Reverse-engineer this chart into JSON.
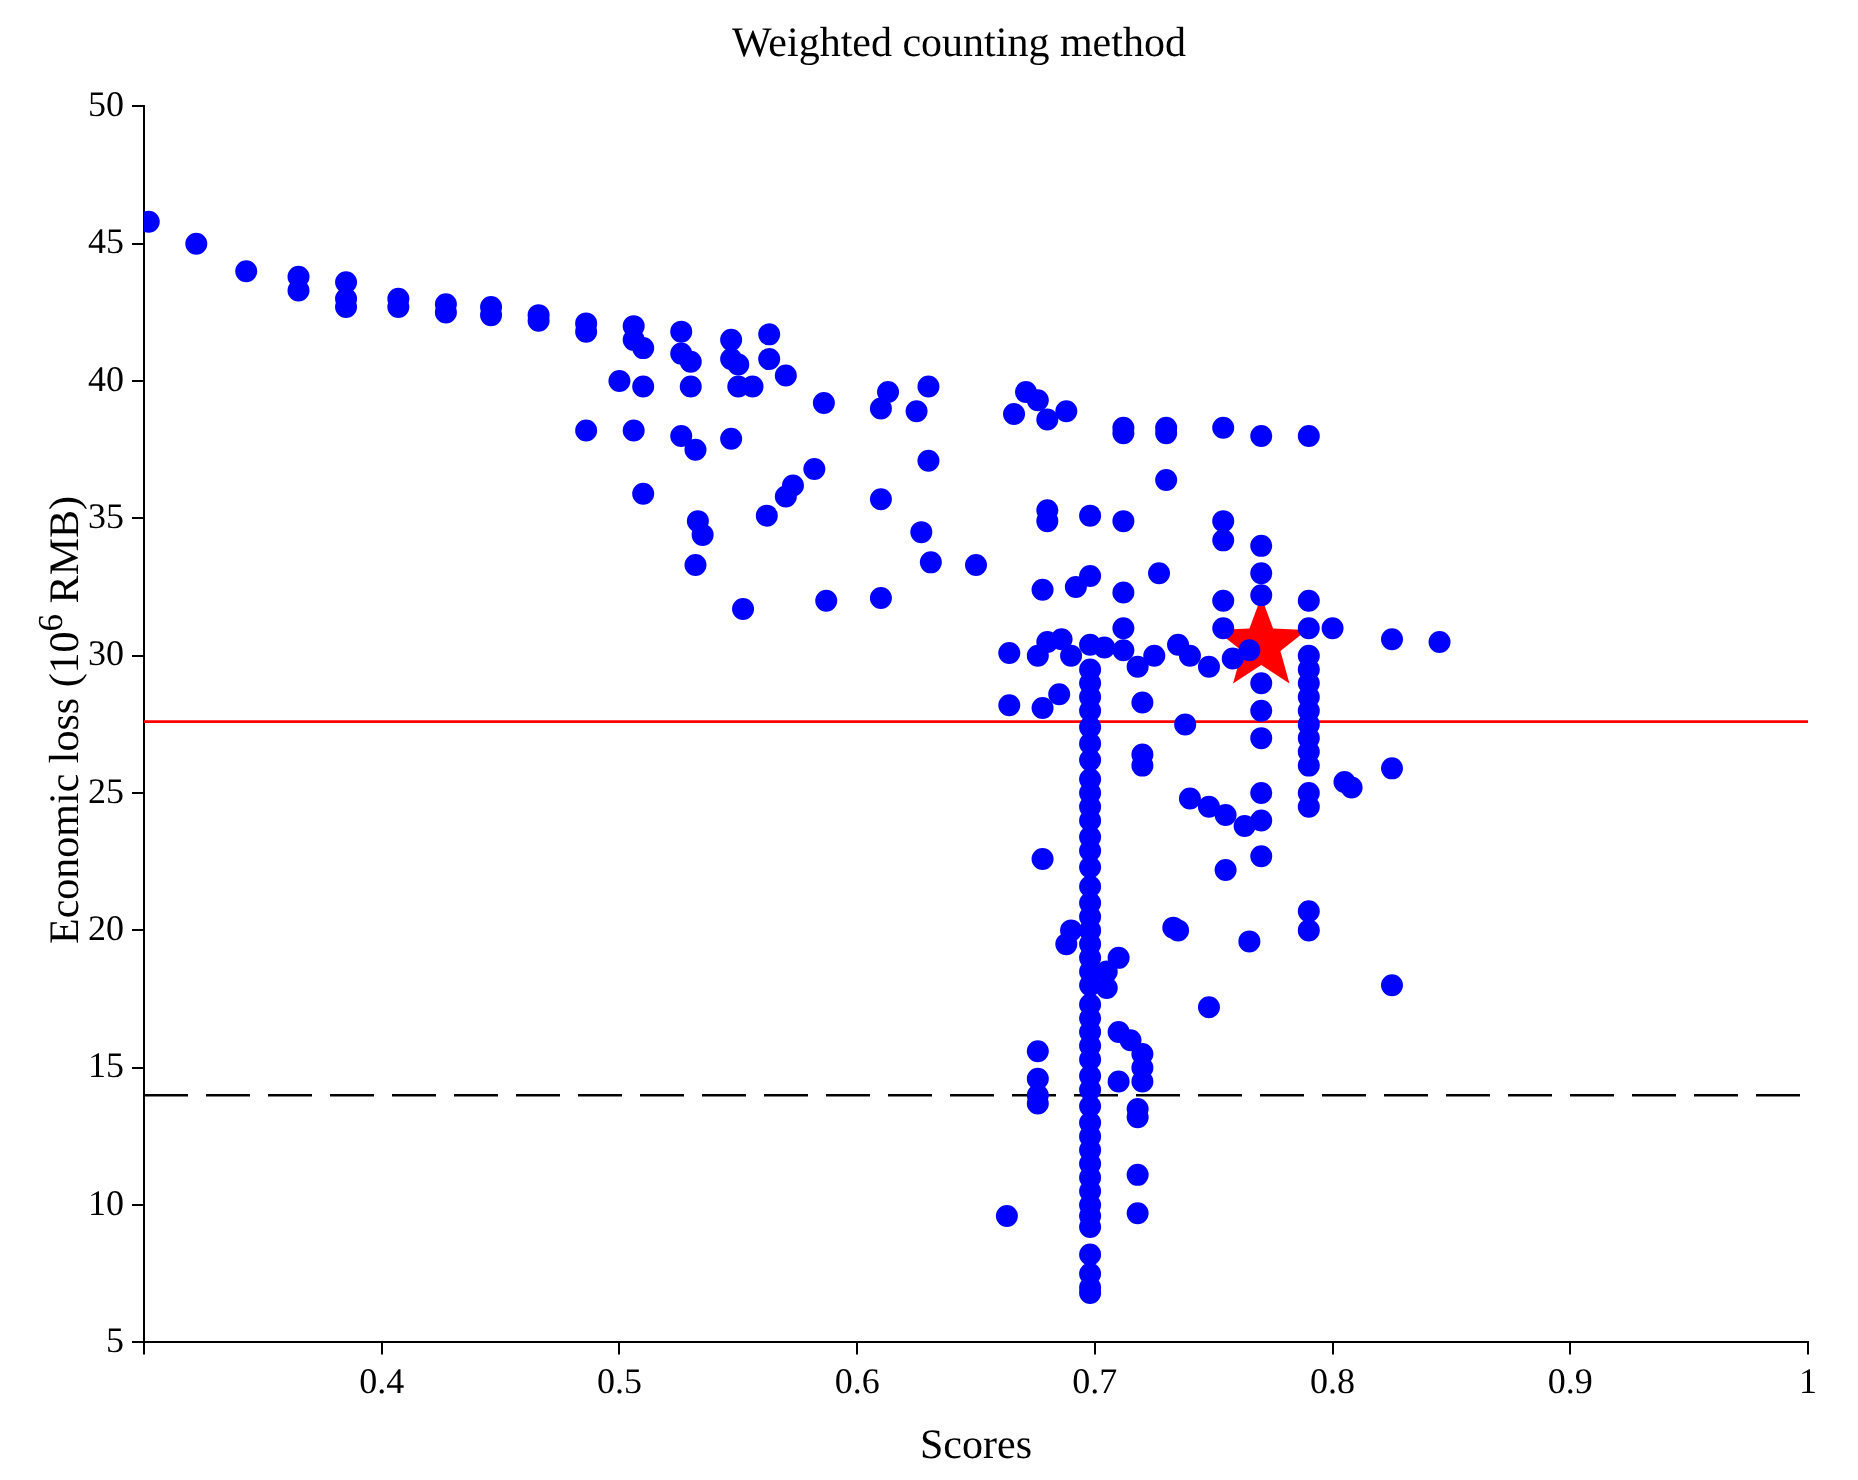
{
  "chart_data": {
    "type": "scatter",
    "title": "Weighted counting method",
    "xlabel": "Scores",
    "ylabel": "Economic loss (10$^{6}$ RMB)",
    "xlim": [
      0.3,
      1
    ],
    "xticks": [
      {
        "value": 0.3,
        "label": null
      },
      0.4,
      0.5,
      0.6,
      0.7,
      0.8,
      0.9,
      1
    ],
    "ylim": [
      5,
      50
    ],
    "yticks": [
      5,
      10,
      15,
      20,
      25,
      30,
      35,
      40,
      45,
      50
    ],
    "grid": false,
    "legend": false,
    "marker": "circle",
    "ref_lines": [
      {
        "axis": "y",
        "value": 27.6,
        "color": "#ff0000",
        "line_style": "solid"
      },
      {
        "axis": "y",
        "value": 14.0,
        "color": "#000000",
        "line_style": "dashed"
      }
    ],
    "series": [
      {
        "color": "#0000ff",
        "x": [
          0.302,
          0.322,
          0.343,
          0.365,
          0.365,
          0.385,
          0.385,
          0.385,
          0.407,
          0.407,
          0.427,
          0.427,
          0.446,
          0.446,
          0.466,
          0.466,
          0.486,
          0.486,
          0.506,
          0.506,
          0.51,
          0.526,
          0.526,
          0.53,
          0.547,
          0.547,
          0.55,
          0.563,
          0.563,
          0.57,
          0.5,
          0.51,
          0.53,
          0.55,
          0.556,
          0.586,
          0.61,
          0.613,
          0.625,
          0.63,
          0.486,
          0.506,
          0.526,
          0.532,
          0.547,
          0.582,
          0.573,
          0.57,
          0.61,
          0.63,
          0.51,
          0.533,
          0.535,
          0.562,
          0.627,
          0.631,
          0.532,
          0.65,
          0.552,
          0.587,
          0.61,
          0.666,
          0.671,
          0.676,
          0.68,
          0.688,
          0.712,
          0.712,
          0.73,
          0.73,
          0.754,
          0.77,
          0.79,
          0.68,
          0.68,
          0.698,
          0.712,
          0.73,
          0.678,
          0.692,
          0.698,
          0.712,
          0.712,
          0.727,
          0.754,
          0.754,
          0.77,
          0.77,
          0.754,
          0.754,
          0.77,
          0.664,
          0.676,
          0.68,
          0.686,
          0.69,
          0.698,
          0.704,
          0.712,
          0.718,
          0.725,
          0.735,
          0.74,
          0.748,
          0.758,
          0.765,
          0.79,
          0.79,
          0.79,
          0.8,
          0.825,
          0.845,
          0.664,
          0.678,
          0.685,
          0.72,
          0.698,
          0.698,
          0.698,
          0.698,
          0.698,
          0.698,
          0.698,
          0.698,
          0.698,
          0.698,
          0.698,
          0.698,
          0.698,
          0.698,
          0.698,
          0.698,
          0.698,
          0.698,
          0.698,
          0.698,
          0.698,
          0.698,
          0.698,
          0.698,
          0.698,
          0.698,
          0.698,
          0.698,
          0.698,
          0.698,
          0.698,
          0.698,
          0.698,
          0.698,
          0.698,
          0.698,
          0.698,
          0.698,
          0.698,
          0.698,
          0.698,
          0.698,
          0.698,
          0.79,
          0.79,
          0.79,
          0.79,
          0.79,
          0.79,
          0.79,
          0.79,
          0.79,
          0.79,
          0.79,
          0.79,
          0.77,
          0.77,
          0.77,
          0.77,
          0.77,
          0.77,
          0.678,
          0.688,
          0.69,
          0.71,
          0.705,
          0.676,
          0.676,
          0.676,
          0.676,
          0.71,
          0.715,
          0.72,
          0.72,
          0.71,
          0.72,
          0.718,
          0.718,
          0.718,
          0.718,
          0.663,
          0.705,
          0.72,
          0.72,
          0.738,
          0.74,
          0.748,
          0.755,
          0.763,
          0.755,
          0.735,
          0.733,
          0.765,
          0.748,
          0.805,
          0.808,
          0.825,
          0.825
        ],
        "values": [
          45.8,
          45.0,
          44.0,
          43.8,
          43.3,
          43.6,
          43.0,
          42.7,
          43.0,
          42.7,
          42.8,
          42.5,
          42.7,
          42.4,
          42.4,
          42.2,
          42.1,
          41.8,
          42.0,
          41.5,
          41.2,
          41.8,
          41.0,
          40.7,
          41.5,
          40.8,
          40.6,
          41.7,
          40.8,
          40.2,
          40.0,
          39.8,
          39.8,
          39.8,
          39.8,
          39.2,
          39.0,
          39.6,
          38.9,
          39.8,
          38.2,
          38.2,
          38.0,
          37.5,
          37.9,
          36.8,
          36.2,
          35.8,
          35.7,
          37.1,
          35.9,
          34.9,
          34.4,
          35.1,
          34.5,
          33.4,
          33.3,
          33.3,
          31.7,
          32.0,
          32.1,
          38.8,
          39.6,
          39.3,
          38.6,
          38.9,
          38.3,
          38.1,
          38.3,
          38.1,
          38.3,
          38.0,
          38.0,
          35.3,
          34.9,
          35.1,
          34.9,
          36.4,
          32.4,
          32.5,
          32.9,
          32.3,
          31.0,
          33.0,
          34.9,
          34.2,
          34.0,
          33.0,
          32.0,
          31.0,
          32.2,
          30.1,
          30.0,
          30.5,
          30.6,
          30.0,
          30.4,
          30.3,
          30.2,
          29.6,
          30.0,
          30.4,
          30.0,
          29.6,
          29.9,
          30.2,
          32.0,
          31.0,
          30.0,
          31.0,
          30.6,
          30.5,
          28.2,
          28.1,
          28.6,
          28.3,
          29.5,
          29.0,
          28.5,
          28.0,
          27.4,
          26.8,
          26.2,
          25.5,
          25.0,
          24.5,
          24.0,
          23.4,
          22.9,
          22.3,
          21.6,
          21.0,
          20.5,
          20.0,
          19.5,
          19.0,
          18.5,
          18.0,
          17.3,
          16.8,
          16.3,
          15.8,
          15.3,
          14.7,
          14.2,
          13.6,
          13.0,
          12.5,
          12.0,
          11.5,
          11.0,
          10.5,
          10.0,
          9.6,
          9.2,
          8.2,
          7.5,
          7.0,
          6.8,
          29.5,
          29.0,
          28.5,
          28.0,
          27.5,
          27.0,
          26.5,
          26.0,
          25.0,
          24.5,
          20.7,
          20.0,
          29.0,
          28.0,
          27.0,
          25.0,
          24.0,
          22.7,
          22.6,
          19.5,
          20.0,
          19.0,
          18.5,
          15.6,
          14.6,
          14.0,
          13.7,
          16.3,
          16.0,
          15.5,
          15.0,
          14.5,
          14.5,
          13.5,
          13.2,
          11.1,
          9.7,
          9.6,
          17.9,
          26.4,
          26.0,
          27.5,
          24.8,
          24.5,
          24.2,
          23.8,
          22.2,
          20.0,
          20.1,
          19.6,
          17.2,
          25.4,
          25.2,
          25.9,
          18.0
        ]
      },
      {
        "color": "#ff0000",
        "marker": "star",
        "x": [
          0.77
        ],
        "values": [
          30.4
        ]
      }
    ]
  }
}
